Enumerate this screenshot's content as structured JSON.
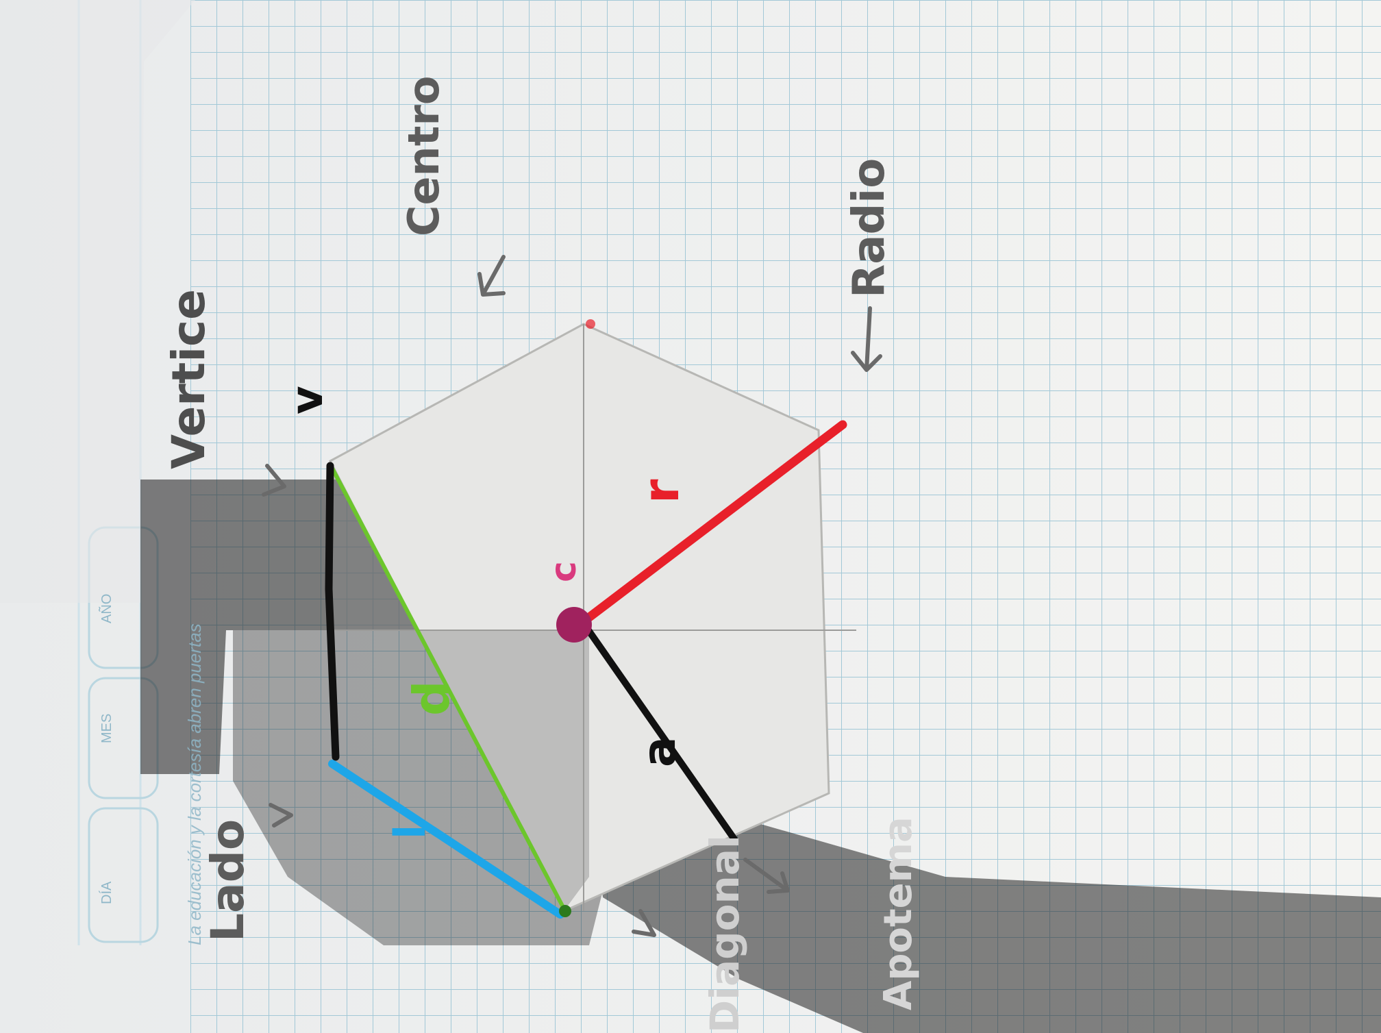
{
  "notebook_header": {
    "dia_label": "DÍA",
    "mes_label": "MES",
    "ano_label": "AÑO",
    "printed_caption": "La educación y la cortesía abren puertas"
  },
  "handwritten_labels": {
    "vertice": "Vertice",
    "centro": "Centro",
    "radio": "Radio",
    "lado": "Lado",
    "diagonal": "Diagonal",
    "apotema": "Apotema"
  },
  "segment_letters": {
    "vertex": "v",
    "center": "c",
    "radius": "r",
    "diagonal": "d",
    "side": "l",
    "apothem": "a"
  },
  "colors": {
    "paper": "#f1f1ee",
    "grid": "#9ec6d6",
    "pencil": "#5c5c5c",
    "radius_red": "#e8202a",
    "diagonal_green": "#6cc62c",
    "side_blue": "#1ea6e8",
    "black_marker": "#111111",
    "center_magenta": "#a0225e",
    "shadow": "#1e1e1e"
  }
}
